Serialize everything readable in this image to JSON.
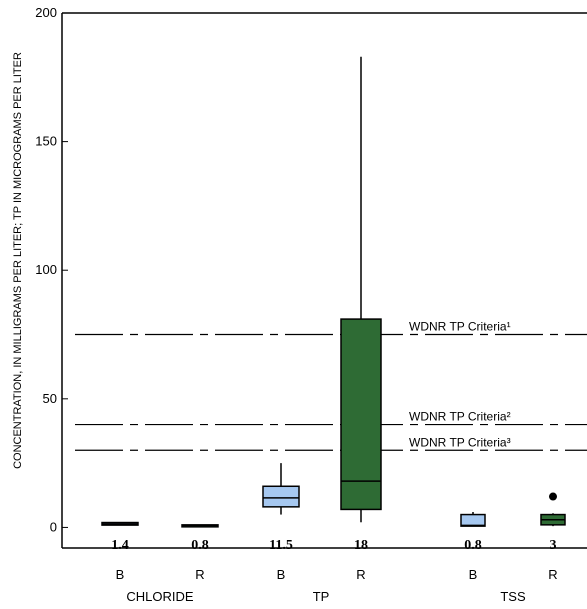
{
  "chart_data": {
    "type": "box",
    "ylabel": "CONCENTRATION, IN MILLIGRAMS PER LITER; TP IN MICROGRAMS PER LITER",
    "ylim": [
      -8,
      200
    ],
    "yticks": [
      0,
      50,
      100,
      150,
      200
    ],
    "colors": {
      "B": "#a6c8f0",
      "R": "#2e6b34"
    },
    "groups": [
      {
        "name": "CHLORIDE",
        "boxes": [
          {
            "category": "B",
            "min": 0.9,
            "q1": 0.9,
            "median": 1.4,
            "q3": 1.9,
            "max": 1.9,
            "median_label": "1.4",
            "outliers": []
          },
          {
            "category": "R",
            "min": 0.6,
            "q1": 0.6,
            "median": 0.8,
            "q3": 1.0,
            "max": 1.0,
            "median_label": "0.8",
            "outliers": []
          }
        ]
      },
      {
        "name": "TP",
        "boxes": [
          {
            "category": "B",
            "min": 5,
            "q1": 8,
            "median": 11.5,
            "q3": 16,
            "max": 25,
            "median_label": "11.5",
            "outliers": []
          },
          {
            "category": "R",
            "min": 2,
            "q1": 7,
            "median": 18,
            "q3": 81,
            "max": 183,
            "median_label": "18",
            "outliers": []
          }
        ]
      },
      {
        "name": "TSS",
        "boxes": [
          {
            "category": "B",
            "min": 0.5,
            "q1": 0.5,
            "median": 0.8,
            "q3": 5,
            "max": 6,
            "median_label": "0.8",
            "outliers": []
          },
          {
            "category": "R",
            "min": 0.5,
            "q1": 1,
            "median": 3,
            "q3": 5,
            "max": 5.5,
            "median_label": "3",
            "outliers": [
              12
            ]
          }
        ]
      }
    ],
    "reference_lines": [
      {
        "value": 75,
        "label": "WDNR TP Criteria¹"
      },
      {
        "value": 40,
        "label": "WDNR TP Criteria²"
      },
      {
        "value": 30,
        "label": "WDNR TP Criteria³"
      }
    ]
  }
}
